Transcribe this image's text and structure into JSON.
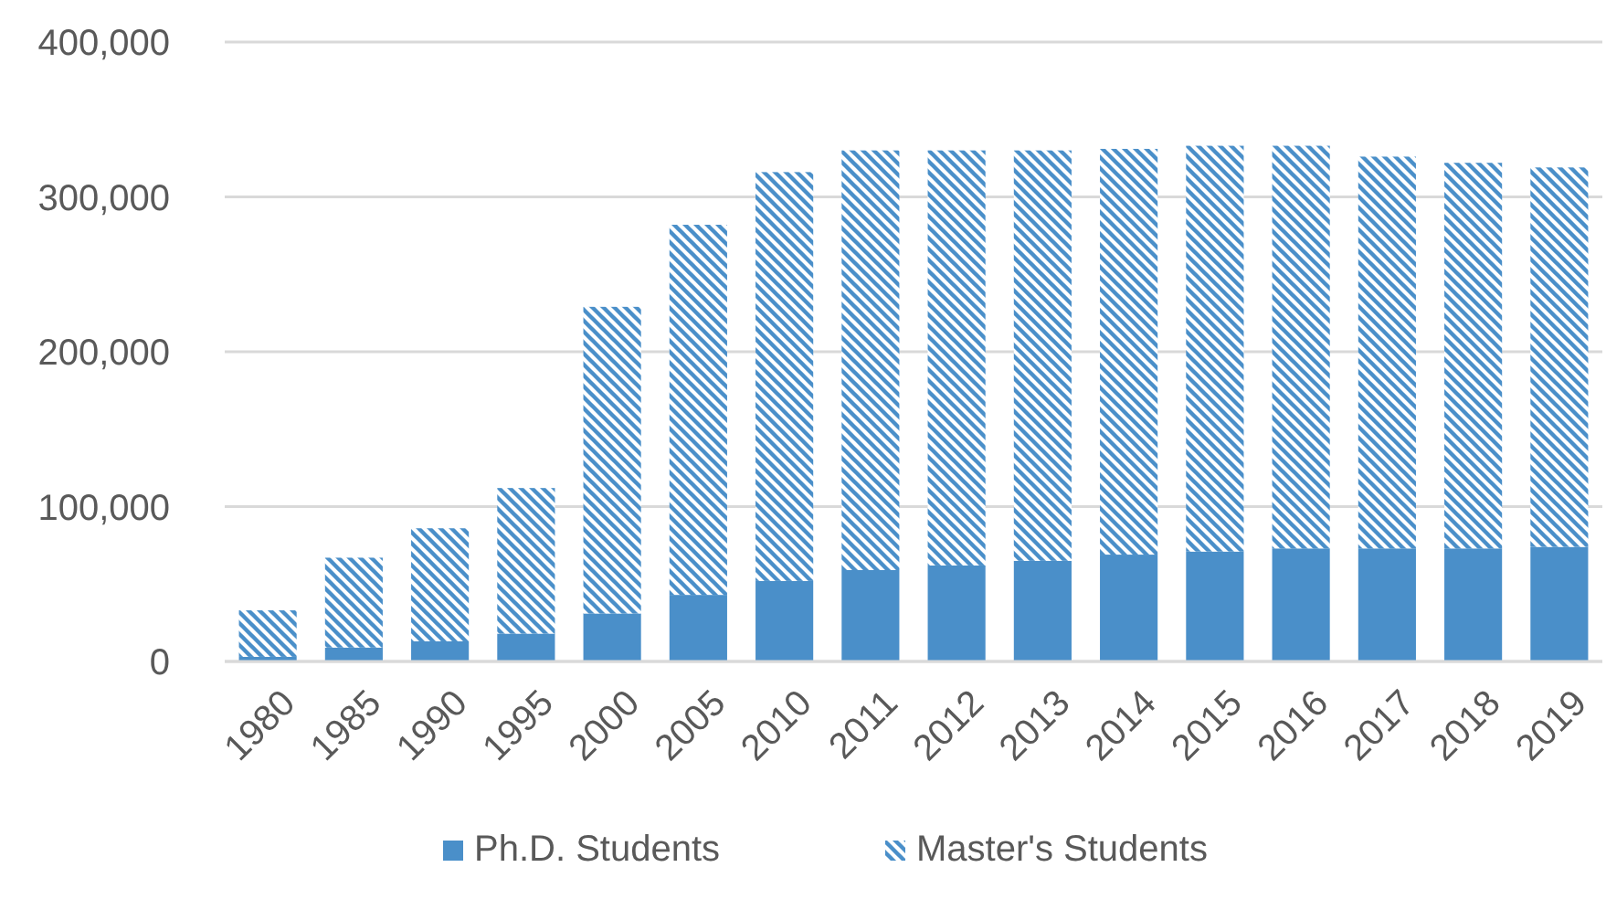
{
  "chart_data": {
    "type": "bar",
    "stacked": true,
    "categories": [
      "1980",
      "1985",
      "1990",
      "1995",
      "2000",
      "2005",
      "2010",
      "2011",
      "2012",
      "2013",
      "2014",
      "2015",
      "2016",
      "2017",
      "2018",
      "2019"
    ],
    "series": [
      {
        "name": "Ph.D. Students",
        "color": "#4a8fc9",
        "values": [
          3000,
          9000,
          13000,
          18000,
          31000,
          43000,
          52000,
          59000,
          62000,
          65000,
          69000,
          71000,
          73000,
          73000,
          73000,
          74000
        ]
      },
      {
        "name": "Master's Students",
        "color": "#4a8fc9",
        "values": [
          30000,
          58000,
          73000,
          94000,
          198000,
          239000,
          264000,
          271000,
          268000,
          265000,
          262000,
          262000,
          260000,
          253000,
          249000,
          245000
        ]
      }
    ],
    "ylim": [
      0,
      400000
    ],
    "yticks": [
      0,
      {
        "value": 100000,
        "label": "100,000"
      },
      {
        "value": 200000,
        "label": "200,000"
      },
      {
        "value": 300000,
        "label": "300,000"
      },
      {
        "value": 400000,
        "label": "400,000"
      }
    ],
    "grid": "y",
    "legend": "bottom"
  }
}
